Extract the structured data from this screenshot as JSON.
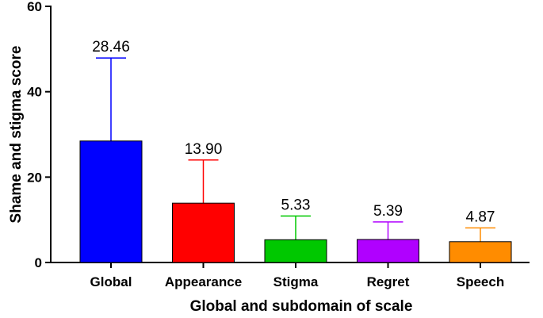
{
  "chart_data": {
    "type": "bar",
    "title": "",
    "xlabel": "Global and subdomain of scale",
    "ylabel": "Shame and stigma score",
    "ylim": [
      0,
      60
    ],
    "yticks": [
      0,
      20,
      40,
      60
    ],
    "categories": [
      "Global",
      "Appearance",
      "Stigma",
      "Regret",
      "Speech"
    ],
    "values": [
      28.46,
      13.9,
      5.33,
      5.39,
      4.87
    ],
    "value_labels": [
      "28.46",
      "13.90",
      "5.33",
      "5.39",
      "4.87"
    ],
    "error_upper": [
      47.9,
      24.0,
      10.9,
      9.5,
      8.1
    ],
    "colors": [
      "#0000FF",
      "#FF0000",
      "#00C800",
      "#B000FF",
      "#FF8C00"
    ],
    "grid": false,
    "legend": "none"
  }
}
